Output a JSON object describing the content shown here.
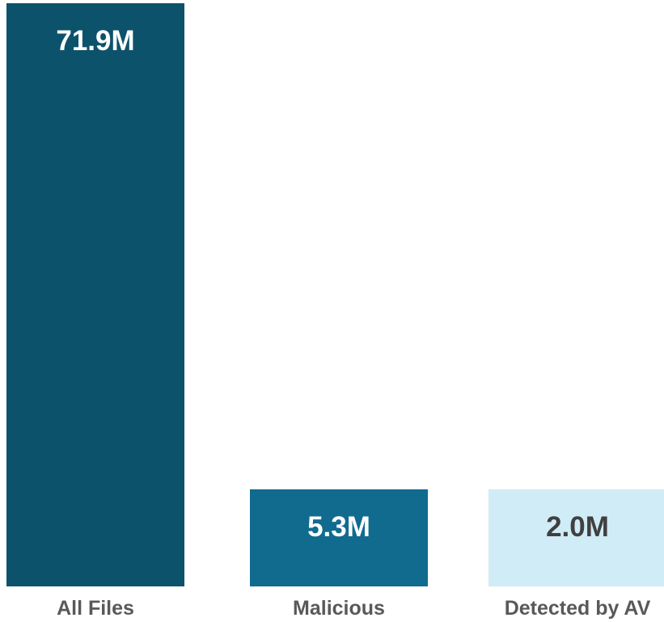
{
  "chart_data": {
    "type": "bar",
    "categories": [
      "All Files",
      "Malicious",
      "Detected by AV"
    ],
    "values": [
      71.9,
      5.3,
      2.0
    ],
    "data_labels": [
      "71.9M",
      "5.3M",
      "2.0M"
    ],
    "unit": "M",
    "bar_colors": [
      "#0d526b",
      "#106b8f",
      "#d0ecf6"
    ],
    "label_colors": [
      "#ffffff",
      "#ffffff",
      "#404040"
    ],
    "title": "",
    "xlabel": "",
    "ylabel": "",
    "grid": false,
    "legend": "none"
  }
}
